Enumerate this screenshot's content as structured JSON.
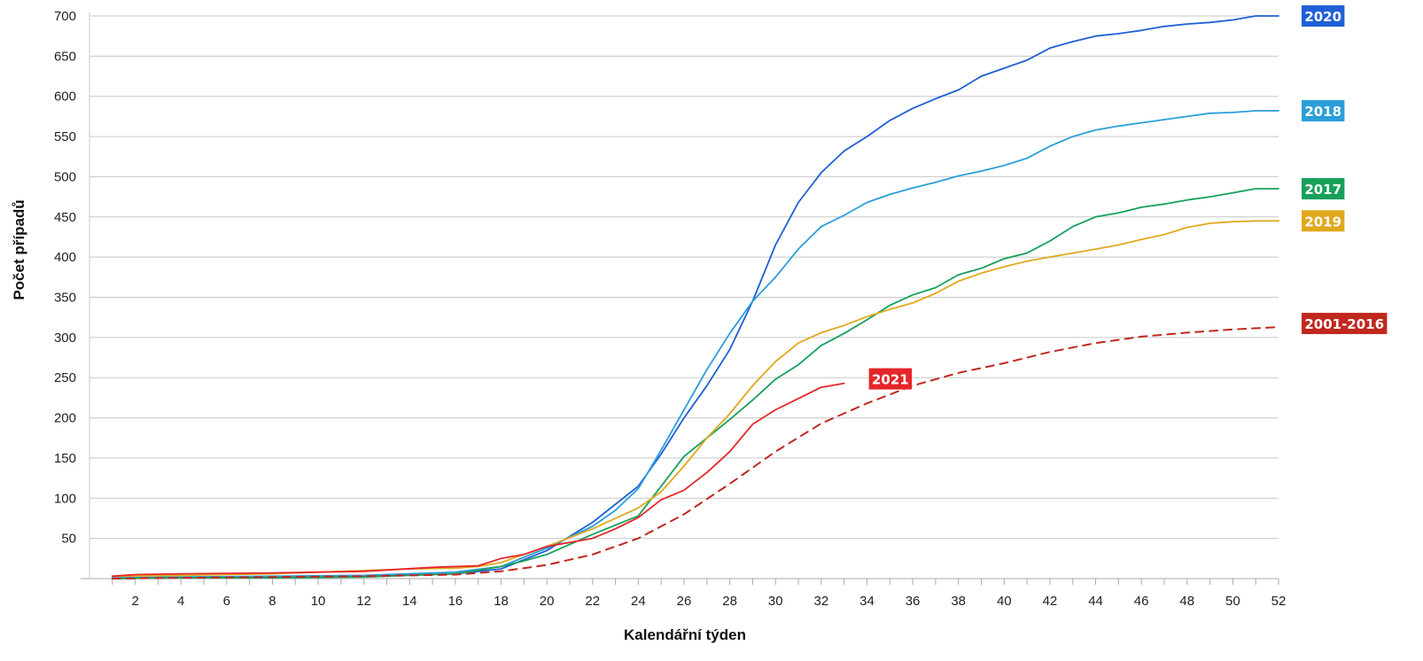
{
  "chart_data": {
    "type": "line",
    "title": "",
    "xlabel": "Kalendářní týden",
    "ylabel": "Počet případů",
    "xlim": [
      0,
      52
    ],
    "ylim": [
      0,
      700
    ],
    "x_ticks": [
      2,
      4,
      6,
      8,
      10,
      12,
      14,
      16,
      18,
      20,
      22,
      24,
      26,
      28,
      30,
      32,
      34,
      36,
      38,
      40,
      42,
      44,
      46,
      48,
      50,
      52
    ],
    "y_ticks": [
      50,
      100,
      150,
      200,
      250,
      300,
      350,
      400,
      450,
      500,
      550,
      600,
      650,
      700
    ],
    "grid": "horizontal",
    "legend": "inline labels at line ends",
    "series": [
      {
        "name": "2020",
        "color": "#1f5fd6",
        "dashed": false,
        "x": [
          1,
          4,
          8,
          12,
          16,
          18,
          20,
          22,
          24,
          25,
          26,
          27,
          28,
          29,
          30,
          31,
          32,
          33,
          34,
          35,
          36,
          37,
          38,
          39,
          40,
          41,
          42,
          43,
          44,
          45,
          46,
          47,
          48,
          49,
          50,
          51,
          52
        ],
        "y": [
          0,
          1,
          2,
          3,
          6,
          12,
          35,
          70,
          115,
          155,
          200,
          240,
          285,
          345,
          415,
          468,
          505,
          532,
          550,
          570,
          585,
          597,
          608,
          625,
          635,
          645,
          660,
          668,
          675,
          678,
          682,
          687,
          690,
          692,
          695,
          700,
          700
        ]
      },
      {
        "name": "2018",
        "color": "#2b9fd9",
        "dashed": false,
        "x": [
          1,
          4,
          8,
          12,
          16,
          18,
          20,
          22,
          23,
          24,
          25,
          26,
          27,
          28,
          29,
          30,
          31,
          32,
          33,
          34,
          35,
          36,
          37,
          38,
          39,
          40,
          41,
          42,
          43,
          44,
          45,
          46,
          47,
          48,
          49,
          50,
          51,
          52
        ],
        "y": [
          1,
          2,
          3,
          4,
          8,
          15,
          38,
          65,
          85,
          112,
          160,
          210,
          260,
          305,
          345,
          375,
          410,
          438,
          452,
          468,
          478,
          486,
          493,
          501,
          507,
          514,
          523,
          538,
          550,
          558,
          563,
          567,
          571,
          575,
          579,
          580,
          582,
          582
        ]
      },
      {
        "name": "2017",
        "color": "#17a05a",
        "dashed": false,
        "x": [
          1,
          4,
          8,
          12,
          16,
          18,
          19,
          20,
          22,
          24,
          25,
          26,
          27,
          28,
          29,
          30,
          31,
          32,
          33,
          34,
          35,
          36,
          37,
          38,
          39,
          40,
          41,
          42,
          43,
          44,
          45,
          46,
          47,
          48,
          49,
          50,
          51,
          52
        ],
        "y": [
          0,
          1,
          1,
          2,
          6,
          15,
          22,
          30,
          55,
          78,
          115,
          152,
          175,
          198,
          222,
          248,
          266,
          290,
          305,
          322,
          340,
          353,
          362,
          378,
          386,
          398,
          405,
          420,
          438,
          450,
          455,
          462,
          466,
          471,
          475,
          480,
          485,
          485
        ]
      },
      {
        "name": "2019",
        "color": "#e0a81c",
        "dashed": false,
        "x": [
          1,
          4,
          8,
          12,
          14,
          16,
          17,
          18,
          20,
          22,
          24,
          25,
          26,
          27,
          28,
          29,
          30,
          31,
          32,
          33,
          34,
          35,
          36,
          37,
          38,
          39,
          40,
          41,
          42,
          43,
          44,
          45,
          46,
          47,
          48,
          49,
          50,
          51,
          52
        ],
        "y": [
          3,
          4,
          6,
          10,
          12,
          13,
          15,
          20,
          40,
          62,
          88,
          108,
          140,
          175,
          205,
          240,
          270,
          293,
          306,
          315,
          326,
          335,
          343,
          355,
          370,
          380,
          388,
          395,
          400,
          405,
          410,
          415,
          422,
          428,
          437,
          442,
          444,
          445,
          445
        ]
      },
      {
        "name": "2021",
        "color": "#e5262a",
        "dashed": false,
        "x": [
          1,
          2,
          4,
          8,
          12,
          15,
          17,
          18,
          19,
          20,
          21,
          22,
          23,
          24,
          25,
          26,
          27,
          28,
          29,
          30,
          31,
          32,
          33
        ],
        "y": [
          3,
          5,
          6,
          7,
          9,
          14,
          16,
          25,
          30,
          40,
          45,
          50,
          62,
          76,
          98,
          110,
          132,
          158,
          192,
          210,
          224,
          238,
          243
        ]
      },
      {
        "name": "2001-2016",
        "color": "#c0281f",
        "dashed": true,
        "x": [
          1,
          4,
          8,
          12,
          16,
          18,
          20,
          22,
          24,
          26,
          28,
          30,
          32,
          34,
          36,
          38,
          40,
          42,
          44,
          46,
          48,
          50,
          52
        ],
        "y": [
          0,
          1,
          2,
          3,
          5,
          9,
          17,
          30,
          50,
          80,
          118,
          158,
          193,
          218,
          240,
          256,
          268,
          282,
          293,
          301,
          306,
          310,
          313
        ]
      }
    ]
  }
}
